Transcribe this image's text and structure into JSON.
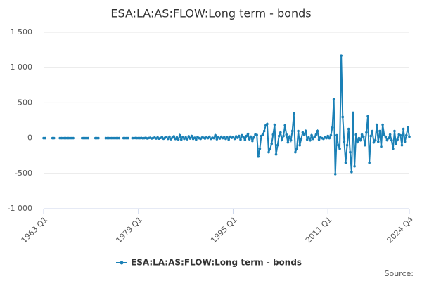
{
  "chart_data": {
    "type": "line",
    "title": "ESA:LA:AS:FLOW:Long term - bonds",
    "source_label": "Source:",
    "x": [
      1963,
      1963.25,
      1963.5,
      1964.5,
      1964.75,
      1965,
      1965.75,
      1966,
      1966.25,
      1966.5,
      1966.75,
      1967,
      1967.25,
      1967.5,
      1967.75,
      1968,
      1968.25,
      1969.5,
      1969.75,
      1970,
      1970.25,
      1970.5,
      1970.75,
      1971.75,
      1972,
      1972.25,
      1972.5,
      1973.5,
      1973.75,
      1974,
      1974.25,
      1974.5,
      1974.75,
      1975,
      1975.25,
      1975.5,
      1975.75,
      1976,
      1976.5,
      1976.75,
      1977,
      1977.25,
      1977.5,
      1978,
      1978.25,
      1978.5,
      1978.75,
      1979,
      1979.25,
      1979.5,
      1979.75,
      1980,
      1980.25,
      1980.5,
      1980.75,
      1981,
      1981.25,
      1981.5,
      1981.75,
      1982,
      1982.25,
      1982.5,
      1982.75,
      1983,
      1983.25,
      1983.5,
      1983.75,
      1984,
      1984.25,
      1984.5,
      1984.75,
      1985,
      1985.25,
      1985.5,
      1985.75,
      1986,
      1986.25,
      1986.5,
      1986.75,
      1987,
      1987.25,
      1987.5,
      1987.75,
      1988,
      1988.25,
      1988.5,
      1988.75,
      1989,
      1989.25,
      1989.5,
      1989.75,
      1990,
      1990.25,
      1990.5,
      1990.75,
      1991,
      1991.25,
      1991.5,
      1991.75,
      1992,
      1992.25,
      1992.5,
      1992.75,
      1993,
      1993.25,
      1993.5,
      1993.75,
      1994,
      1994.25,
      1994.5,
      1994.75,
      1995,
      1995.25,
      1995.5,
      1995.75,
      1996,
      1996.25,
      1996.5,
      1996.75,
      1997,
      1997.25,
      1997.5,
      1997.75,
      1998,
      1998.25,
      1998.5,
      1998.75,
      1999,
      1999.25,
      1999.5,
      1999.75,
      2000,
      2000.25,
      2000.5,
      2000.75,
      2001,
      2001.25,
      2001.5,
      2001.75,
      2002,
      2002.25,
      2002.5,
      2002.75,
      2003,
      2003.25,
      2003.5,
      2003.75,
      2004,
      2004.25,
      2004.5,
      2004.75,
      2005,
      2005.25,
      2005.5,
      2005.75,
      2006,
      2006.25,
      2006.5,
      2006.75,
      2007,
      2007.25,
      2007.5,
      2007.75,
      2008,
      2008.25,
      2008.5,
      2008.75,
      2009,
      2009.25,
      2009.5,
      2009.75,
      2010,
      2010.25,
      2010.5,
      2010.75,
      2011,
      2011.25,
      2011.5,
      2011.75,
      2012,
      2012.25,
      2012.5,
      2012.75,
      2013,
      2013.25,
      2013.5,
      2013.75,
      2014,
      2014.25,
      2014.5,
      2014.75,
      2015,
      2015.25,
      2015.5,
      2015.75,
      2016,
      2016.25,
      2016.5,
      2016.75,
      2017,
      2017.25,
      2017.5,
      2017.75,
      2018,
      2018.25,
      2018.5,
      2018.75,
      2019,
      2019.25,
      2019.5,
      2019.75,
      2020,
      2020.25,
      2020.5,
      2020.75,
      2021,
      2021.25,
      2021.5,
      2021.75,
      2022,
      2022.25,
      2022.5,
      2022.75,
      2023,
      2023.25,
      2023.5,
      2023.75,
      2024,
      2024.25,
      2024.5,
      2024.75
    ],
    "series": [
      {
        "name": "ESA:LA:AS:FLOW:Long term - bonds",
        "color": "#1a80b6",
        "values": [
          0,
          0,
          null,
          0,
          0,
          null,
          0,
          0,
          0,
          0,
          0,
          0,
          0,
          0,
          0,
          0,
          null,
          0,
          0,
          0,
          0,
          0,
          null,
          0,
          0,
          0,
          null,
          0,
          0,
          0,
          0,
          0,
          0,
          0,
          0,
          0,
          0,
          null,
          0,
          0,
          0,
          0,
          null,
          0,
          0,
          2,
          0,
          1,
          0,
          3,
          -2,
          0,
          4,
          -3,
          2,
          5,
          -4,
          3,
          8,
          -5,
          10,
          -6,
          4,
          12,
          -8,
          5,
          15,
          -10,
          20,
          -15,
          8,
          25,
          -12,
          10,
          -18,
          40,
          -20,
          15,
          -10,
          10,
          -15,
          25,
          -5,
          30,
          -10,
          5,
          -20,
          15,
          0,
          -10,
          8,
          5,
          -5,
          10,
          0,
          20,
          -10,
          5,
          0,
          40,
          -15,
          10,
          -5,
          20,
          0,
          15,
          -10,
          10,
          -20,
          20,
          5,
          15,
          -10,
          25,
          5,
          30,
          -20,
          40,
          10,
          -25,
          30,
          60,
          -15,
          20,
          -40,
          10,
          50,
          45,
          -260,
          -150,
          30,
          50,
          100,
          180,
          200,
          -200,
          -150,
          -80,
          50,
          190,
          -230,
          -100,
          30,
          80,
          -20,
          30,
          180,
          50,
          -60,
          20,
          -30,
          100,
          350,
          -200,
          -150,
          100,
          -100,
          -10,
          80,
          50,
          100,
          -20,
          10,
          -30,
          40,
          -10,
          20,
          50,
          100,
          -20,
          10,
          0,
          -10,
          10,
          0,
          30,
          0,
          40,
          150,
          550,
          -510,
          40,
          -100,
          -150,
          1170,
          300,
          -50,
          -350,
          -100,
          130,
          -200,
          -480,
          360,
          -400,
          50,
          -50,
          0,
          -30,
          50,
          20,
          -100,
          80,
          310,
          -350,
          30,
          100,
          -60,
          -30,
          190,
          -50,
          100,
          -120,
          190,
          50,
          20,
          -30,
          0,
          50,
          -30,
          -150,
          100,
          -80,
          -20,
          50,
          40,
          -100,
          130,
          -50,
          40,
          150,
          20
        ]
      }
    ],
    "xlim": [
      1963,
      2024.75
    ],
    "xticks": [
      {
        "value": 1963,
        "label": "1963 Q1"
      },
      {
        "value": 1979,
        "label": "1979 Q1"
      },
      {
        "value": 1995,
        "label": "1995 Q1"
      },
      {
        "value": 2011,
        "label": "2011 Q1"
      },
      {
        "value": 2024.75,
        "label": "2024 Q4"
      }
    ],
    "ylim": [
      -1000,
      1500
    ],
    "yticks": [
      {
        "value": -1000,
        "label": "-1 000"
      },
      -500,
      0,
      500,
      {
        "value": 1000,
        "label": "1 000"
      },
      {
        "value": 1500,
        "label": "1 500"
      }
    ],
    "grid": true
  }
}
